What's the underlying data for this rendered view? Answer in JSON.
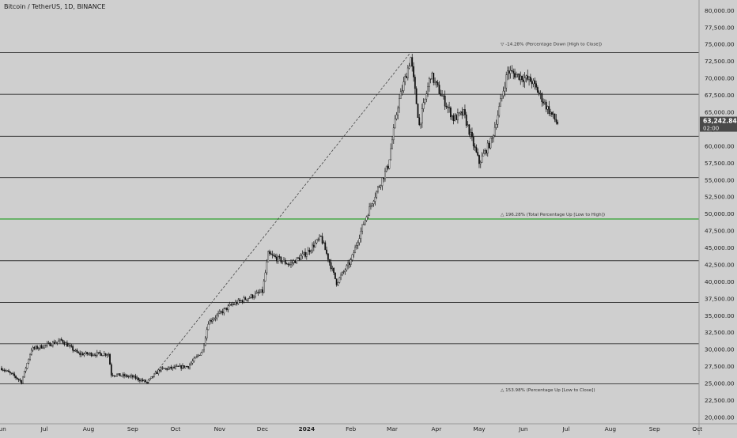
{
  "chart_data": {
    "type": "candlestick",
    "title": "Bitcoin / TetherUS, 1D, BINANCE",
    "ylim": [
      19000,
      81500
    ],
    "y_ticks": [
      20000,
      22500,
      25000,
      27500,
      30000,
      32500,
      35000,
      37500,
      40000,
      42500,
      45000,
      47500,
      50000,
      52500,
      55000,
      57500,
      60000,
      62500,
      65000,
      67500,
      70000,
      72500,
      75000,
      77500,
      80000
    ],
    "y_tick_labels": [
      "20,000.00",
      "22,500.00",
      "25,000.00",
      "27,500.00",
      "30,000.00",
      "32,500.00",
      "35,000.00",
      "37,500.00",
      "40,000.00",
      "42,500.00",
      "45,000.00",
      "47,500.00",
      "50,000.00",
      "52,500.00",
      "55,000.00",
      "57,500.00",
      "60,000.00",
      "62,500.00",
      "65,000.00",
      "67,500.00",
      "70,000.00",
      "72,500.00",
      "75,000.00",
      "77,500.00",
      "80,000.00"
    ],
    "x_ticks": [
      {
        "label": "Jun",
        "date": "2023-06-01"
      },
      {
        "label": "Jul",
        "date": "2023-07-01"
      },
      {
        "label": "Aug",
        "date": "2023-08-01"
      },
      {
        "label": "Sep",
        "date": "2023-09-01"
      },
      {
        "label": "Oct",
        "date": "2023-10-01"
      },
      {
        "label": "Nov",
        "date": "2023-11-01"
      },
      {
        "label": "Dec",
        "date": "2023-12-01"
      },
      {
        "label": "2024",
        "date": "2024-01-01"
      },
      {
        "label": "Feb",
        "date": "2024-02-01"
      },
      {
        "label": "Mar",
        "date": "2024-03-01"
      },
      {
        "label": "Apr",
        "date": "2024-04-01"
      },
      {
        "label": "May",
        "date": "2024-05-01"
      },
      {
        "label": "Jun",
        "date": "2024-06-01"
      },
      {
        "label": "Jul",
        "date": "2024-07-01"
      },
      {
        "label": "Aug",
        "date": "2024-08-01"
      },
      {
        "label": "Sep",
        "date": "2024-09-01"
      },
      {
        "label": "Oct",
        "date": "2024-10-01"
      }
    ],
    "anchors": [
      {
        "date": "2023-06-01",
        "price": 27200
      },
      {
        "date": "2023-06-10",
        "price": 26000
      },
      {
        "date": "2023-06-15",
        "price": 25200
      },
      {
        "date": "2023-06-22",
        "price": 30000
      },
      {
        "date": "2023-07-01",
        "price": 30500
      },
      {
        "date": "2023-07-13",
        "price": 31300
      },
      {
        "date": "2023-07-25",
        "price": 29300
      },
      {
        "date": "2023-08-15",
        "price": 29300
      },
      {
        "date": "2023-08-17",
        "price": 26300
      },
      {
        "date": "2023-09-01",
        "price": 25900
      },
      {
        "date": "2023-09-11",
        "price": 25100
      },
      {
        "date": "2023-09-20",
        "price": 27000
      },
      {
        "date": "2023-10-10",
        "price": 27500
      },
      {
        "date": "2023-10-20",
        "price": 29800
      },
      {
        "date": "2023-10-24",
        "price": 34000
      },
      {
        "date": "2023-11-09",
        "price": 36500
      },
      {
        "date": "2023-12-01",
        "price": 38500
      },
      {
        "date": "2023-12-05",
        "price": 44000
      },
      {
        "date": "2023-12-20",
        "price": 42500
      },
      {
        "date": "2024-01-01",
        "price": 44200
      },
      {
        "date": "2024-01-11",
        "price": 46500
      },
      {
        "date": "2024-01-22",
        "price": 39800
      },
      {
        "date": "2024-02-01",
        "price": 43000
      },
      {
        "date": "2024-02-09",
        "price": 48000
      },
      {
        "date": "2024-02-16",
        "price": 51800
      },
      {
        "date": "2024-02-27",
        "price": 57000
      },
      {
        "date": "2024-03-05",
        "price": 66000
      },
      {
        "date": "2024-03-14",
        "price": 73000
      },
      {
        "date": "2024-03-20",
        "price": 63000
      },
      {
        "date": "2024-03-28",
        "price": 70500
      },
      {
        "date": "2024-04-13",
        "price": 64000
      },
      {
        "date": "2024-04-20",
        "price": 64800
      },
      {
        "date": "2024-05-01",
        "price": 57500
      },
      {
        "date": "2024-05-10",
        "price": 61000
      },
      {
        "date": "2024-05-21",
        "price": 71000
      },
      {
        "date": "2024-06-07",
        "price": 69500
      },
      {
        "date": "2024-06-18",
        "price": 65500
      },
      {
        "date": "2024-06-25",
        "price": 63242.84
      }
    ],
    "horizontal_levels": [
      {
        "price": 73750,
        "color": "#333333"
      },
      {
        "price": 67600,
        "color": "#333333"
      },
      {
        "price": 61400,
        "color": "#333333"
      },
      {
        "price": 55300,
        "color": "#333333"
      },
      {
        "price": 49200,
        "color": "#2ca02c"
      },
      {
        "price": 43050,
        "color": "#333333"
      },
      {
        "price": 36900,
        "color": "#333333"
      },
      {
        "price": 30800,
        "color": "#333333"
      },
      {
        "price": 24900,
        "color": "#333333"
      }
    ],
    "trend_line": {
      "from": {
        "date": "2023-09-11",
        "price": 24900
      },
      "to": {
        "date": "2024-03-14",
        "price": 73800
      }
    },
    "annotations": [
      {
        "text": "▽ -14.28% (Percentage Down [High to Close])",
        "date": "2024-05-16",
        "price": 75000
      },
      {
        "text": "△ 196.28% (Total Percentage Up [Low to High])",
        "date": "2024-05-16",
        "price": 49900
      },
      {
        "text": "△ 153.98% (Percentage Up [Low to Close])",
        "date": "2024-05-16",
        "price": 24000
      }
    ],
    "last_price": {
      "value": "63,242.84",
      "countdown": "02:00"
    }
  }
}
